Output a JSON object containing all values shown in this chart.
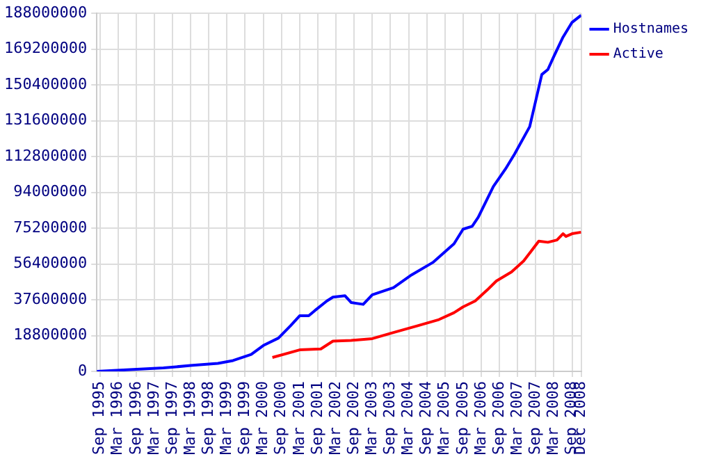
{
  "chart_data": {
    "type": "line",
    "xlim": [
      "1995-08",
      "2008-12"
    ],
    "ylim": [
      0,
      188000000
    ],
    "yticks": [
      0,
      18800000,
      37600000,
      56400000,
      75200000,
      94000000,
      112800000,
      131600000,
      150400000,
      169200000,
      188000000
    ],
    "xticks": [
      {
        "value": "1995-09",
        "label": "Sep 1995"
      },
      {
        "value": "1996-03",
        "label": "Mar 1996"
      },
      {
        "value": "1996-09",
        "label": "Sep 1996"
      },
      {
        "value": "1997-03",
        "label": "Mar 1997"
      },
      {
        "value": "1997-09",
        "label": "Sep 1997"
      },
      {
        "value": "1998-03",
        "label": "Mar 1998"
      },
      {
        "value": "1998-09",
        "label": "Sep 1998"
      },
      {
        "value": "1999-03",
        "label": "Mar 1999"
      },
      {
        "value": "1999-09",
        "label": "Sep 1999"
      },
      {
        "value": "2000-03",
        "label": "Mar 2000"
      },
      {
        "value": "2000-09",
        "label": "Sep 2000"
      },
      {
        "value": "2001-03",
        "label": "Mar 2001"
      },
      {
        "value": "2001-09",
        "label": "Sep 2001"
      },
      {
        "value": "2002-03",
        "label": "Mar 2002"
      },
      {
        "value": "2002-09",
        "label": "Sep 2002"
      },
      {
        "value": "2003-03",
        "label": "Mar 2003"
      },
      {
        "value": "2003-09",
        "label": "Sep 2003"
      },
      {
        "value": "2004-03",
        "label": "Mar 2004"
      },
      {
        "value": "2004-09",
        "label": "Sep 2004"
      },
      {
        "value": "2005-03",
        "label": "Mar 2005"
      },
      {
        "value": "2005-09",
        "label": "Sep 2005"
      },
      {
        "value": "2006-03",
        "label": "Mar 2006"
      },
      {
        "value": "2006-09",
        "label": "Sep 2006"
      },
      {
        "value": "2007-03",
        "label": "Mar 2007"
      },
      {
        "value": "2007-09",
        "label": "Sep 2007"
      },
      {
        "value": "2008-03",
        "label": "Mar 2008"
      },
      {
        "value": "2008-09",
        "label": "Sep 2008"
      },
      {
        "value": "2008-12",
        "label": "Dec 2008"
      }
    ],
    "grid": true,
    "legend": "top right",
    "marker": "none",
    "line_style": "solid",
    "series": [
      {
        "name": "Hostnames",
        "color": "#0000ff",
        "x": [
          "1995-08",
          "1996-08",
          "1997-06",
          "1998-03",
          "1998-12",
          "1999-05",
          "1999-11",
          "2000-03",
          "2000-08",
          "2000-12",
          "2001-03",
          "2001-06",
          "2001-08",
          "2001-12",
          "2002-02",
          "2002-06",
          "2002-08",
          "2002-12",
          "2003-03",
          "2003-10",
          "2004-04",
          "2004-11",
          "2005-06",
          "2005-09",
          "2005-12",
          "2006-02",
          "2006-07",
          "2006-11",
          "2007-02",
          "2007-07",
          "2007-11",
          "2008-01",
          "2008-03",
          "2008-06",
          "2008-09",
          "2008-12"
        ],
        "values": [
          20000,
          1000000,
          1800000,
          3100000,
          4200000,
          5700000,
          8900000,
          13600000,
          17500000,
          24000000,
          29200000,
          29200000,
          31900000,
          37000000,
          39000000,
          39700000,
          36200000,
          35200000,
          40200000,
          44000000,
          50700000,
          57200000,
          67000000,
          74700000,
          76200000,
          80900000,
          97100000,
          106300000,
          114100000,
          128500000,
          155900000,
          158500000,
          165500000,
          175500000,
          183300000,
          187000000
        ]
      },
      {
        "name": "Active",
        "color": "#ff0000",
        "x": [
          "2000-06",
          "2001-03",
          "2001-10",
          "2002-02",
          "2002-08",
          "2003-03",
          "2003-10",
          "2004-06",
          "2005-01",
          "2005-06",
          "2005-09",
          "2006-01",
          "2006-05",
          "2006-08",
          "2007-01",
          "2007-05",
          "2007-10",
          "2008-01",
          "2008-04",
          "2008-06",
          "2008-07",
          "2008-09",
          "2008-12"
        ],
        "values": [
          7300000,
          11300000,
          11800000,
          15900000,
          16300000,
          17200000,
          20400000,
          24000000,
          27200000,
          30800000,
          33900000,
          37000000,
          42800000,
          47500000,
          52200000,
          58000000,
          68400000,
          67800000,
          69000000,
          72300000,
          70900000,
          72300000,
          73100000
        ]
      }
    ]
  }
}
